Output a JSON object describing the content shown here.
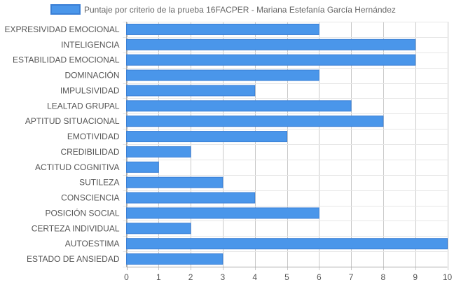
{
  "chart_data": {
    "type": "bar",
    "orientation": "horizontal",
    "title": "",
    "xlabel": "",
    "ylabel": "",
    "xlim": [
      0,
      10
    ],
    "x_ticks": [
      "0",
      "1",
      "2",
      "3",
      "4",
      "5",
      "6",
      "7",
      "8",
      "9",
      "10"
    ],
    "grid": true,
    "legend_position": "top",
    "categories": [
      "EXPRESIVIDAD EMOCIONAL",
      "INTELIGENCIA",
      "ESTABILIDAD EMOCIONAL",
      "DOMINACIÓN",
      "IMPULSIVIDAD",
      "LEALTAD GRUPAL",
      "APTITUD SITUACIONAL",
      "EMOTIVIDAD",
      "CREDIBILIDAD",
      "ACTITUD COGNITIVA",
      "SUTILEZA",
      "CONSCIENCIA",
      "POSICIÓN SOCIAL",
      "CERTEZA INDIVIDUAL",
      "AUTOESTIMA",
      "ESTADO DE ANSIEDAD"
    ],
    "series": [
      {
        "name": "Puntaje por criterio de la prueba 16FACPER - Mariana Estefanía García Hernández",
        "color": "#4a96ea",
        "border_color": "#3a7fd5",
        "values": [
          6,
          9,
          9,
          6,
          4,
          7,
          8,
          5,
          2,
          1,
          3,
          4,
          6,
          2,
          10,
          3
        ]
      }
    ]
  }
}
